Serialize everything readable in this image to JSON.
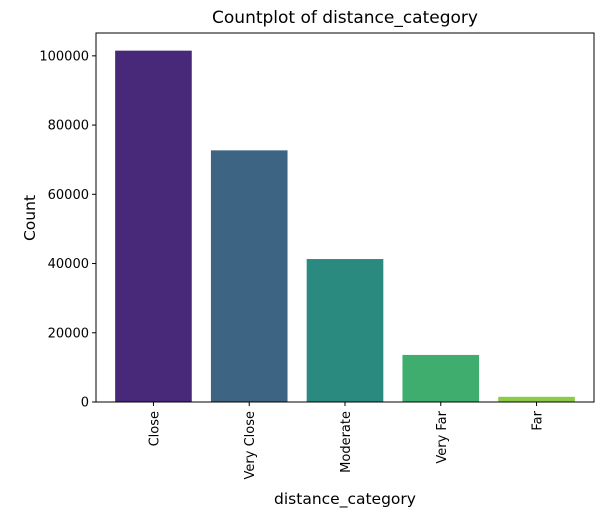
{
  "chart_data": {
    "type": "bar",
    "title": "Countplot of distance_category",
    "xlabel": "distance_category",
    "ylabel": "Count",
    "categories": [
      "Close",
      "Very Close",
      "Moderate",
      "Very Far",
      "Far"
    ],
    "values": [
      101500,
      72700,
      41300,
      13600,
      1500
    ],
    "colors": [
      "#482878",
      "#3E6483",
      "#2A8A80",
      "#3FAD6D",
      "#8CCB45"
    ],
    "ylim": [
      0,
      106600
    ],
    "yticks": [
      0,
      20000,
      40000,
      60000,
      80000,
      100000
    ],
    "ytick_labels": [
      "0",
      "20000",
      "40000",
      "60000",
      "80000",
      "100000"
    ],
    "grid": false,
    "legend": "none"
  }
}
